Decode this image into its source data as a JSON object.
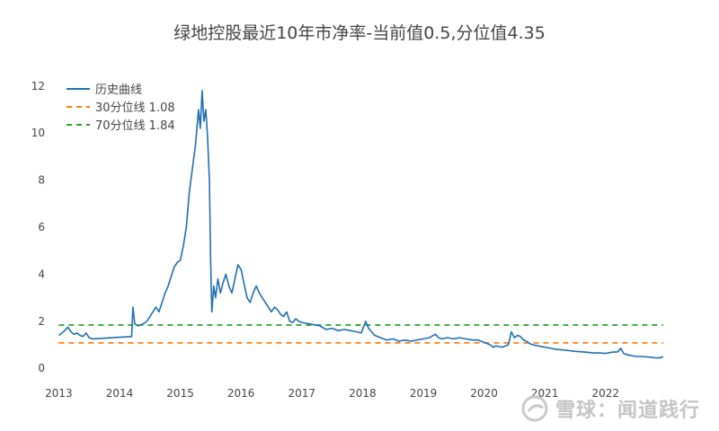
{
  "chart_data": {
    "type": "line",
    "title": "绿地控股最近10年市净率-当前值0.5,分位值4.35",
    "xlabel": "",
    "ylabel": "",
    "x_ticks": [
      "2013",
      "2014",
      "2015",
      "2016",
      "2017",
      "2018",
      "2019",
      "2020",
      "2021",
      "2022"
    ],
    "y_ticks": [
      0,
      2,
      4,
      6,
      8,
      10,
      12
    ],
    "xlim": [
      2012.95,
      2022.95
    ],
    "ylim": [
      -0.3,
      12.3
    ],
    "grid": false,
    "legend_position": "top-left",
    "series": [
      {
        "name": "历史曲线",
        "color": "#1f6fb4",
        "x": [
          2013.0,
          2013.05,
          2013.1,
          2013.15,
          2013.2,
          2013.25,
          2013.3,
          2013.35,
          2013.4,
          2013.45,
          2013.5,
          2013.55,
          2014.2,
          2014.22,
          2014.25,
          2014.3,
          2014.35,
          2014.4,
          2014.45,
          2014.5,
          2014.55,
          2014.6,
          2014.65,
          2014.7,
          2014.75,
          2014.8,
          2014.85,
          2014.9,
          2014.95,
          2015.0,
          2015.05,
          2015.1,
          2015.15,
          2015.2,
          2015.25,
          2015.3,
          2015.33,
          2015.36,
          2015.39,
          2015.42,
          2015.45,
          2015.48,
          2015.5,
          2015.52,
          2015.55,
          2015.58,
          2015.62,
          2015.66,
          2015.7,
          2015.75,
          2015.8,
          2015.85,
          2015.9,
          2015.95,
          2016.0,
          2016.05,
          2016.1,
          2016.15,
          2016.2,
          2016.25,
          2016.3,
          2016.35,
          2016.4,
          2016.45,
          2016.5,
          2016.55,
          2016.6,
          2016.65,
          2016.7,
          2016.75,
          2016.8,
          2016.85,
          2016.9,
          2016.95,
          2017.0,
          2017.1,
          2017.2,
          2017.3,
          2017.4,
          2017.5,
          2017.6,
          2017.7,
          2017.8,
          2017.9,
          2017.98,
          2018.05,
          2018.1,
          2018.2,
          2018.3,
          2018.4,
          2018.5,
          2018.6,
          2018.7,
          2018.8,
          2018.9,
          2019.0,
          2019.1,
          2019.2,
          2019.25,
          2019.3,
          2019.4,
          2019.5,
          2019.6,
          2019.7,
          2019.8,
          2019.9,
          2020.0,
          2020.1,
          2020.15,
          2020.2,
          2020.3,
          2020.4,
          2020.45,
          2020.5,
          2020.55,
          2020.6,
          2020.65,
          2020.7,
          2020.75,
          2020.8,
          2020.9,
          2021.0,
          2021.1,
          2021.2,
          2021.3,
          2021.4,
          2021.5,
          2021.6,
          2021.7,
          2021.8,
          2021.9,
          2022.0,
          2022.1,
          2022.2,
          2022.25,
          2022.3,
          2022.4,
          2022.5,
          2022.6,
          2022.7,
          2022.8,
          2022.9,
          2022.95
        ],
        "y": [
          1.4,
          1.5,
          1.6,
          1.75,
          1.55,
          1.45,
          1.5,
          1.4,
          1.35,
          1.5,
          1.3,
          1.25,
          1.35,
          2.6,
          1.9,
          1.8,
          1.85,
          1.9,
          2.0,
          2.2,
          2.4,
          2.6,
          2.4,
          2.8,
          3.2,
          3.5,
          3.9,
          4.3,
          4.5,
          4.6,
          5.2,
          6.0,
          7.5,
          8.5,
          9.5,
          11.0,
          10.2,
          11.8,
          10.5,
          11.0,
          9.8,
          8.0,
          4.5,
          2.4,
          3.5,
          3.0,
          3.8,
          3.2,
          3.6,
          4.0,
          3.5,
          3.2,
          3.8,
          4.4,
          4.2,
          3.6,
          3.0,
          2.8,
          3.2,
          3.5,
          3.2,
          3.0,
          2.8,
          2.6,
          2.4,
          2.6,
          2.5,
          2.3,
          2.2,
          2.4,
          2.0,
          1.95,
          2.1,
          2.0,
          1.95,
          1.9,
          1.85,
          1.8,
          1.65,
          1.7,
          1.6,
          1.65,
          1.6,
          1.55,
          1.5,
          2.0,
          1.7,
          1.4,
          1.3,
          1.2,
          1.25,
          1.15,
          1.2,
          1.15,
          1.2,
          1.25,
          1.3,
          1.45,
          1.3,
          1.25,
          1.3,
          1.25,
          1.3,
          1.25,
          1.2,
          1.2,
          1.1,
          1.0,
          0.9,
          0.95,
          0.9,
          1.0,
          1.55,
          1.3,
          1.4,
          1.35,
          1.2,
          1.15,
          1.05,
          1.0,
          0.95,
          0.9,
          0.85,
          0.8,
          0.78,
          0.75,
          0.72,
          0.7,
          0.68,
          0.65,
          0.65,
          0.63,
          0.68,
          0.7,
          0.85,
          0.62,
          0.55,
          0.5,
          0.5,
          0.48,
          0.45,
          0.44,
          0.5
        ]
      },
      {
        "name": "30分位线 1.08",
        "color": "#ff7f0e",
        "dash": true,
        "x": [
          2013.0,
          2022.95
        ],
        "y": [
          1.08,
          1.08
        ]
      },
      {
        "name": "70分位线 1.84",
        "color": "#2ca02c",
        "dash": true,
        "x": [
          2013.0,
          2022.95
        ],
        "y": [
          1.84,
          1.84
        ]
      }
    ]
  },
  "watermark": {
    "text": "雪球：闻道践行"
  }
}
